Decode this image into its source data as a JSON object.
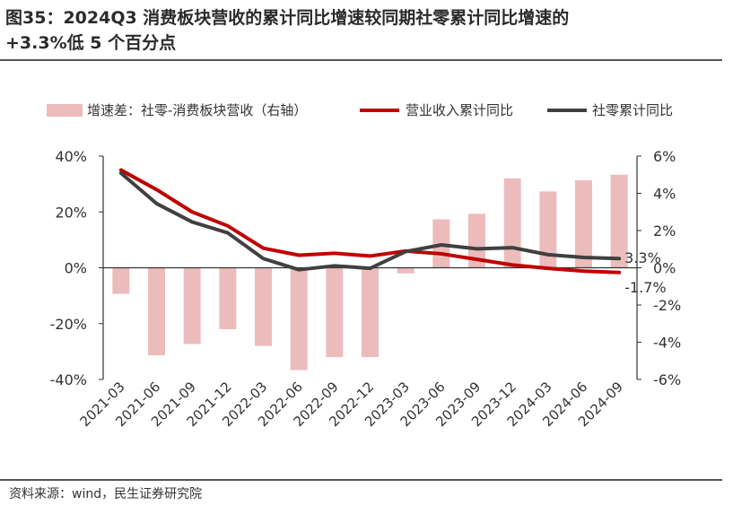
{
  "title_line1": "图35：2024Q3 消费板块营收的累计同比增速较同期社零累计同比增速的",
  "title_line2": "+3.3%低 5 个百分点",
  "source": "资料来源：wind，民生证券研究院",
  "colors": {
    "bar": "#ecbcbc",
    "revenue": "#c00000",
    "retail": "#404040",
    "axis": "#333333",
    "text": "#333333"
  },
  "chart_data": {
    "type": "bar+line",
    "categories": [
      "2021-03",
      "2021-06",
      "2021-09",
      "2021-12",
      "2022-03",
      "2022-06",
      "2022-09",
      "2022-12",
      "2023-03",
      "2023-06",
      "2023-09",
      "2023-12",
      "2024-03",
      "2024-06",
      "2024-09"
    ],
    "legend": {
      "bar": "增速差：社零-消费板块营收（右轴）",
      "revenue": "营业收入累计同比",
      "retail": "社零累计同比"
    },
    "left_axis": {
      "min": -40,
      "max": 40,
      "ticks": [
        40,
        20,
        0,
        -20,
        -40
      ],
      "tick_labels": [
        "40%",
        "20%",
        "0%",
        "-20%",
        "-40%"
      ]
    },
    "right_axis": {
      "min": -6,
      "max": 6,
      "ticks": [
        6,
        4,
        2,
        0,
        -2,
        -4,
        -6
      ],
      "tick_labels": [
        "6%",
        "4%",
        "2%",
        "0%",
        "-2%",
        "-4%",
        "-6%"
      ]
    },
    "series": [
      {
        "name": "增速差：社零-消费板块营收（右轴）",
        "axis": "right",
        "kind": "bar",
        "values": [
          -1.4,
          -4.7,
          -4.1,
          -3.3,
          -4.2,
          -5.5,
          -4.8,
          -4.8,
          -0.3,
          2.6,
          2.9,
          4.8,
          4.1,
          4.7,
          5.0
        ]
      },
      {
        "name": "营业收入累计同比",
        "axis": "left",
        "kind": "line",
        "values": [
          35,
          28,
          20,
          15,
          7,
          4.5,
          5.2,
          4.2,
          6,
          5,
          3,
          1,
          -0.2,
          -1.2,
          -1.7
        ]
      },
      {
        "name": "社零累计同比",
        "axis": "left",
        "kind": "line",
        "values": [
          33.9,
          23,
          16.4,
          12.5,
          3.3,
          -0.7,
          0.7,
          -0.2,
          5.8,
          8.2,
          6.8,
          7.2,
          4.7,
          3.7,
          3.3
        ]
      }
    ],
    "annotations": [
      {
        "text": "3.3%",
        "series": "社零累计同比",
        "index": 14
      },
      {
        "text": "-1.7%",
        "series": "营业收入累计同比",
        "index": 14
      }
    ]
  }
}
